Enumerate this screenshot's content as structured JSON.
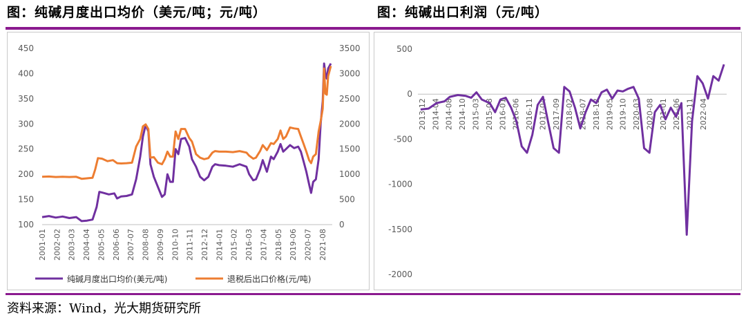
{
  "titles": {
    "left": "图：纯碱月度出口均价（美元/吨；元/吨）",
    "right": "图：纯碱出口利润（元/吨）"
  },
  "source": "资料来源：Wind，光大期货研究所",
  "colors": {
    "accent": "#8b1a8f",
    "purple": "#7030a0",
    "orange": "#ed7d31"
  },
  "chart_data": [
    {
      "type": "line",
      "title": "纯碱月度出口均价（美元/吨；元/吨）",
      "x_ticks": [
        "2001-01",
        "2002-02",
        "2003-03",
        "2004-04",
        "2005-05",
        "2006-06",
        "2007-07",
        "2008-08",
        "2009-09",
        "2010-10",
        "2011-11",
        "2012-12",
        "2014-01",
        "2015-02",
        "2016-03",
        "2017-04",
        "2018-05",
        "2019-06",
        "2020-07",
        "2021-08"
      ],
      "ylim_left": [
        100,
        450
      ],
      "yticks_left": [
        100,
        150,
        200,
        250,
        300,
        350,
        400,
        450
      ],
      "ylim_right": [
        0,
        3500
      ],
      "yticks_right": [
        0,
        500,
        1000,
        1500,
        2000,
        2500,
        3000,
        3500
      ],
      "legend": "bottom",
      "series": [
        {
          "name": "纯碱月度出口均价(美元/吨)",
          "axis": "left",
          "color": "#7030a0",
          "points": [
            [
              2001.0,
              115
            ],
            [
              2001.5,
              117
            ],
            [
              2002.0,
              114
            ],
            [
              2002.5,
              116
            ],
            [
              2003.0,
              113
            ],
            [
              2003.5,
              115
            ],
            [
              2003.9,
              107
            ],
            [
              2004.3,
              108
            ],
            [
              2004.7,
              110
            ],
            [
              2005.0,
              135
            ],
            [
              2005.2,
              165
            ],
            [
              2005.5,
              163
            ],
            [
              2005.9,
              160
            ],
            [
              2006.3,
              162
            ],
            [
              2006.5,
              152
            ],
            [
              2006.8,
              156
            ],
            [
              2007.2,
              157
            ],
            [
              2007.6,
              160
            ],
            [
              2007.9,
              190
            ],
            [
              2008.2,
              235
            ],
            [
              2008.4,
              275
            ],
            [
              2008.6,
              298
            ],
            [
              2008.8,
              285
            ],
            [
              2008.95,
              220
            ],
            [
              2009.2,
              195
            ],
            [
              2009.5,
              175
            ],
            [
              2009.8,
              155
            ],
            [
              2010.0,
              160
            ],
            [
              2010.2,
              200
            ],
            [
              2010.4,
              185
            ],
            [
              2010.6,
              185
            ],
            [
              2010.8,
              250
            ],
            [
              2011.0,
              240
            ],
            [
              2011.2,
              270
            ],
            [
              2011.5,
              272
            ],
            [
              2011.8,
              255
            ],
            [
              2012.0,
              230
            ],
            [
              2012.3,
              215
            ],
            [
              2012.6,
              195
            ],
            [
              2012.9,
              188
            ],
            [
              2013.2,
              195
            ],
            [
              2013.5,
              215
            ],
            [
              2013.7,
              220
            ],
            [
              2014.0,
              218
            ],
            [
              2014.5,
              217
            ],
            [
              2015.0,
              215
            ],
            [
              2015.5,
              220
            ],
            [
              2016.0,
              215
            ],
            [
              2016.2,
              200
            ],
            [
              2016.5,
              188
            ],
            [
              2016.7,
              190
            ],
            [
              2017.0,
              210
            ],
            [
              2017.2,
              228
            ],
            [
              2017.5,
              205
            ],
            [
              2017.8,
              235
            ],
            [
              2018.0,
              230
            ],
            [
              2018.3,
              245
            ],
            [
              2018.5,
              260
            ],
            [
              2018.7,
              245
            ],
            [
              2018.9,
              250
            ],
            [
              2019.2,
              258
            ],
            [
              2019.5,
              252
            ],
            [
              2019.8,
              255
            ],
            [
              2020.0,
              245
            ],
            [
              2020.2,
              225
            ],
            [
              2020.4,
              205
            ],
            [
              2020.6,
              180
            ],
            [
              2020.75,
              163
            ],
            [
              2020.9,
              185
            ],
            [
              2021.1,
              190
            ],
            [
              2021.3,
              230
            ],
            [
              2021.45,
              300
            ],
            [
              2021.6,
              345
            ],
            [
              2021.7,
              420
            ],
            [
              2021.8,
              400
            ],
            [
              2021.9,
              390
            ],
            [
              2022.0,
              410
            ],
            [
              2022.2,
              420
            ]
          ]
        },
        {
          "name": "退税后出口价格(元/吨)",
          "axis": "right",
          "color": "#ed7d31",
          "points": [
            [
              2001.0,
              950
            ],
            [
              2001.5,
              955
            ],
            [
              2002.0,
              945
            ],
            [
              2002.5,
              950
            ],
            [
              2003.0,
              945
            ],
            [
              2003.5,
              950
            ],
            [
              2003.9,
              910
            ],
            [
              2004.3,
              920
            ],
            [
              2004.7,
              930
            ],
            [
              2004.9,
              1100
            ],
            [
              2005.1,
              1320
            ],
            [
              2005.4,
              1310
            ],
            [
              2005.8,
              1260
            ],
            [
              2006.2,
              1280
            ],
            [
              2006.5,
              1220
            ],
            [
              2006.8,
              1215
            ],
            [
              2007.2,
              1220
            ],
            [
              2007.6,
              1230
            ],
            [
              2007.9,
              1550
            ],
            [
              2008.2,
              1700
            ],
            [
              2008.4,
              1950
            ],
            [
              2008.6,
              1990
            ],
            [
              2008.8,
              1900
            ],
            [
              2008.95,
              1330
            ],
            [
              2009.2,
              1340
            ],
            [
              2009.5,
              1230
            ],
            [
              2009.8,
              1200
            ],
            [
              2010.0,
              1300
            ],
            [
              2010.2,
              1450
            ],
            [
              2010.4,
              1350
            ],
            [
              2010.6,
              1350
            ],
            [
              2010.8,
              1850
            ],
            [
              2011.0,
              1700
            ],
            [
              2011.2,
              1900
            ],
            [
              2011.5,
              1900
            ],
            [
              2011.8,
              1720
            ],
            [
              2012.0,
              1650
            ],
            [
              2012.3,
              1400
            ],
            [
              2012.6,
              1330
            ],
            [
              2012.9,
              1300
            ],
            [
              2013.2,
              1320
            ],
            [
              2013.5,
              1430
            ],
            [
              2013.7,
              1460
            ],
            [
              2014.0,
              1450
            ],
            [
              2014.5,
              1450
            ],
            [
              2015.0,
              1440
            ],
            [
              2015.5,
              1460
            ],
            [
              2016.0,
              1430
            ],
            [
              2016.2,
              1370
            ],
            [
              2016.5,
              1310
            ],
            [
              2016.7,
              1330
            ],
            [
              2017.0,
              1460
            ],
            [
              2017.2,
              1580
            ],
            [
              2017.5,
              1480
            ],
            [
              2017.8,
              1620
            ],
            [
              2018.0,
              1600
            ],
            [
              2018.3,
              1700
            ],
            [
              2018.5,
              1870
            ],
            [
              2018.7,
              1700
            ],
            [
              2018.9,
              1750
            ],
            [
              2019.2,
              1930
            ],
            [
              2019.5,
              1910
            ],
            [
              2019.8,
              1900
            ],
            [
              2020.0,
              1750
            ],
            [
              2020.2,
              1600
            ],
            [
              2020.4,
              1450
            ],
            [
              2020.6,
              1280
            ],
            [
              2020.75,
              1220
            ],
            [
              2020.9,
              1350
            ],
            [
              2021.1,
              1400
            ],
            [
              2021.3,
              1850
            ],
            [
              2021.45,
              2050
            ],
            [
              2021.6,
              2300
            ],
            [
              2021.7,
              3100
            ],
            [
              2021.8,
              2600
            ],
            [
              2021.9,
              2580
            ],
            [
              2022.0,
              2950
            ],
            [
              2022.2,
              3150
            ]
          ]
        }
      ]
    },
    {
      "type": "line",
      "title": "纯碱出口利润（元/吨）",
      "x_ticks": [
        "2013-12",
        "2014-04",
        "2014-08",
        "2014-10",
        "2015-03",
        "2015-08",
        "2016-01",
        "2016-06",
        "2016-11",
        "2017-04",
        "2017-09",
        "2018-02",
        "2018-07",
        "2018-12",
        "2019-05",
        "2019-10",
        "2020-03",
        "2020-08",
        "2021-01",
        "2021-06",
        "2021-11",
        "2022-04"
      ],
      "ylim": [
        -2000,
        500
      ],
      "yticks": [
        -2000,
        -1500,
        -1000,
        -500,
        0,
        500
      ],
      "series": [
        {
          "name": "纯碱出口利润",
          "color": "#7030a0",
          "points": [
            [
              2013.9,
              -170
            ],
            [
              2014.2,
              -160
            ],
            [
              2014.5,
              -100
            ],
            [
              2014.8,
              -80
            ],
            [
              2015.0,
              -30
            ],
            [
              2015.3,
              -10
            ],
            [
              2015.6,
              -20
            ],
            [
              2015.8,
              -40
            ],
            [
              2016.0,
              20
            ],
            [
              2016.2,
              -60
            ],
            [
              2016.5,
              -100
            ],
            [
              2016.7,
              -200
            ],
            [
              2016.9,
              -60
            ],
            [
              2017.1,
              -40
            ],
            [
              2017.3,
              -150
            ],
            [
              2017.5,
              -300
            ],
            [
              2017.7,
              -580
            ],
            [
              2017.9,
              -650
            ],
            [
              2018.1,
              -450
            ],
            [
              2018.3,
              -120
            ],
            [
              2018.5,
              -30
            ],
            [
              2018.7,
              -320
            ],
            [
              2018.9,
              -600
            ],
            [
              2019.1,
              -650
            ],
            [
              2019.3,
              80
            ],
            [
              2019.5,
              30
            ],
            [
              2019.7,
              -150
            ],
            [
              2019.9,
              -380
            ],
            [
              2020.1,
              -200
            ],
            [
              2020.3,
              -60
            ],
            [
              2020.5,
              -100
            ],
            [
              2020.7,
              20
            ],
            [
              2020.9,
              50
            ],
            [
              2021.1,
              -50
            ],
            [
              2021.3,
              40
            ],
            [
              2021.5,
              30
            ],
            [
              2021.7,
              60
            ],
            [
              2021.9,
              80
            ],
            [
              2022.1,
              -50
            ],
            [
              2022.3,
              -600
            ],
            [
              2022.5,
              -650
            ],
            [
              2022.7,
              -200
            ],
            [
              2022.9,
              -120
            ],
            [
              2023.1,
              -280
            ],
            [
              2023.3,
              -150
            ],
            [
              2023.5,
              -250
            ],
            [
              2023.7,
              -100
            ],
            [
              2023.9,
              -1560
            ],
            [
              2024.1,
              -300
            ],
            [
              2024.3,
              200
            ],
            [
              2024.5,
              120
            ],
            [
              2024.7,
              -50
            ],
            [
              2024.9,
              200
            ],
            [
              2025.1,
              150
            ],
            [
              2025.3,
              330
            ]
          ]
        }
      ]
    }
  ]
}
